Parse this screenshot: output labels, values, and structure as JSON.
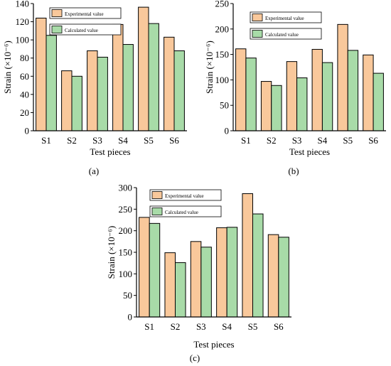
{
  "colors": {
    "experimental": "#F9C89B",
    "calculated": "#A8DBA8",
    "axis": "#000000"
  },
  "chart_data": [
    {
      "type": "bar",
      "panel_label": "(a)",
      "categories": [
        "S1",
        "S2",
        "S3",
        "S4",
        "S5",
        "S6"
      ],
      "series": [
        {
          "name": "Experimental value",
          "values": [
            124,
            66,
            88,
            117,
            136,
            103
          ]
        },
        {
          "name": "Calculated value",
          "values": [
            105,
            60,
            81,
            95,
            118,
            88
          ]
        }
      ],
      "xlabel": "Test pieces",
      "ylabel": "Strain (×10⁻⁶)",
      "ylim": [
        0,
        140
      ],
      "yticks": [
        0,
        20,
        40,
        60,
        80,
        100,
        120,
        140
      ],
      "legend": "top-left",
      "grid": false
    },
    {
      "type": "bar",
      "panel_label": "(b)",
      "categories": [
        "S1",
        "S2",
        "S3",
        "S4",
        "S5",
        "S6"
      ],
      "series": [
        {
          "name": "Experimental value",
          "values": [
            161,
            97,
            136,
            160,
            209,
            149
          ]
        },
        {
          "name": "Calculated value",
          "values": [
            143,
            89,
            104,
            134,
            158,
            113
          ]
        }
      ],
      "xlabel": "Test pieces",
      "ylabel": "Strain (×10⁻⁶)",
      "ylim": [
        0,
        250
      ],
      "yticks": [
        0,
        50,
        100,
        150,
        200,
        250
      ],
      "legend": "top-left",
      "grid": false
    },
    {
      "type": "bar",
      "panel_label": "(c)",
      "categories": [
        "S1",
        "S2",
        "S3",
        "S4",
        "S5",
        "S6"
      ],
      "series": [
        {
          "name": "Experimental value",
          "values": [
            231,
            149,
            175,
            207,
            286,
            191
          ]
        },
        {
          "name": "Calculated value",
          "values": [
            217,
            126,
            162,
            208,
            239,
            185
          ]
        }
      ],
      "xlabel": "Test pieces",
      "ylabel": "Strain (×10⁻⁶)",
      "ylim": [
        0,
        300
      ],
      "yticks": [
        0,
        50,
        100,
        150,
        200,
        250,
        300
      ],
      "legend": "top-left",
      "grid": false
    }
  ]
}
